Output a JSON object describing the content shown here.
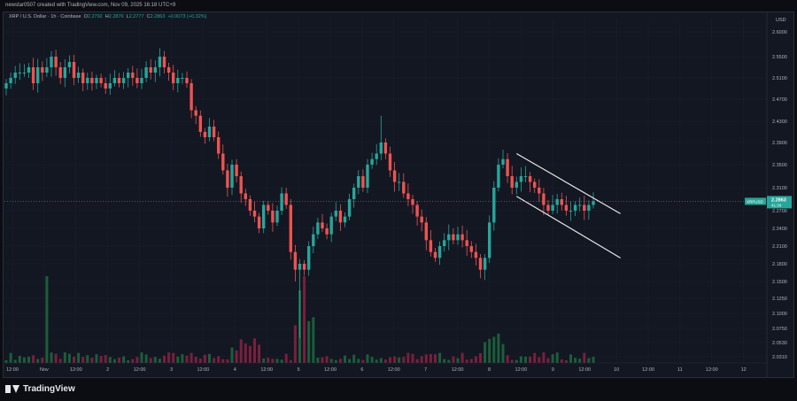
{
  "header": {
    "attribution": "newstar0507 created with TradingView.com, Nov 09, 2025 16:18 UTC+9"
  },
  "legend": {
    "symbol": "XRP / U.S. Dollar · 1h · Coinbase",
    "open_label": "O",
    "open": "2.2792",
    "high_label": "H",
    "high": "2.2870",
    "low_label": "L",
    "low": "2.2777",
    "close_label": "C",
    "close": "2.2863",
    "change": "+0.0073 (+0.32%)"
  },
  "footer": {
    "brand": "TradingView"
  },
  "colors": {
    "up": "#26a69a",
    "down": "#ef5350",
    "vol_up": "#1b5e3b",
    "vol_down": "#7a1f3d",
    "channel": "#e8e8e8",
    "price_tag": "#26a69a"
  },
  "chart_data": {
    "type": "candlestick",
    "symbol": "XRPUSD",
    "currency": "USD",
    "timeframe": "1h",
    "price_axis_ticks": [
      "2.6000",
      "2.5500",
      "2.5100",
      "2.4700",
      "2.4300",
      "2.3900",
      "2.3500",
      "2.3100",
      "2.2700",
      "2.2400",
      "2.2100",
      "2.1800",
      "2.1500",
      "2.1250",
      "2.1000",
      "2.0750",
      "2.0530",
      "2.0310"
    ],
    "time_axis_ticks": [
      "12:00",
      "Nov",
      "12:00",
      "2",
      "12:00",
      "3",
      "12:00",
      "4",
      "12:00",
      "5",
      "12:00",
      "6",
      "12:00",
      "7",
      "12:00",
      "8",
      "12:00",
      "9",
      "12:00",
      "10",
      "12:00",
      "11",
      "12:00",
      "12"
    ],
    "last_price": {
      "symbol": "XRPUSD",
      "value": "2.2863",
      "countdown": "41:34"
    },
    "closes": [
      2.5,
      2.51,
      2.52,
      2.52,
      2.52,
      2.53,
      2.5,
      2.53,
      2.52,
      2.53,
      2.55,
      2.53,
      2.51,
      2.53,
      2.54,
      2.51,
      2.52,
      2.5,
      2.51,
      2.5,
      2.51,
      2.5,
      2.49,
      2.5,
      2.51,
      2.5,
      2.51,
      2.52,
      2.51,
      2.5,
      2.51,
      2.53,
      2.52,
      2.53,
      2.55,
      2.53,
      2.52,
      2.5,
      2.51,
      2.51,
      2.5,
      2.45,
      2.44,
      2.41,
      2.4,
      2.42,
      2.4,
      2.37,
      2.34,
      2.31,
      2.35,
      2.33,
      2.3,
      2.29,
      2.27,
      2.26,
      2.24,
      2.28,
      2.27,
      2.25,
      2.27,
      2.3,
      2.28,
      2.2,
      2.17,
      2.18,
      2.17,
      2.21,
      2.23,
      2.25,
      2.24,
      2.23,
      2.26,
      2.27,
      2.25,
      2.26,
      2.29,
      2.31,
      2.33,
      2.31,
      2.35,
      2.36,
      2.37,
      2.39,
      2.37,
      2.34,
      2.32,
      2.32,
      2.3,
      2.29,
      2.28,
      2.26,
      2.25,
      2.22,
      2.2,
      2.19,
      2.21,
      2.22,
      2.23,
      2.22,
      2.23,
      2.22,
      2.21,
      2.2,
      2.19,
      2.17,
      2.19,
      2.25,
      2.31,
      2.35,
      2.36,
      2.33,
      2.31,
      2.32,
      2.33,
      2.33,
      2.32,
      2.31,
      2.3,
      2.28,
      2.27,
      2.28,
      2.29,
      2.28,
      2.27,
      2.27,
      2.28,
      2.28,
      2.27,
      2.28,
      2.2863
    ],
    "channel_lines": [
      {
        "name": "upper",
        "from": {
          "bar": 113,
          "price": 2.37
        },
        "to": {
          "bar": 136,
          "price": 2.265
        }
      },
      {
        "name": "lower",
        "from": {
          "bar": 113,
          "price": 2.295
        },
        "to": {
          "bar": 136,
          "price": 2.19
        }
      }
    ],
    "volume": "relative bars in lower panel; spikes around Nov 1 00:00 and Nov 5 08:00"
  }
}
